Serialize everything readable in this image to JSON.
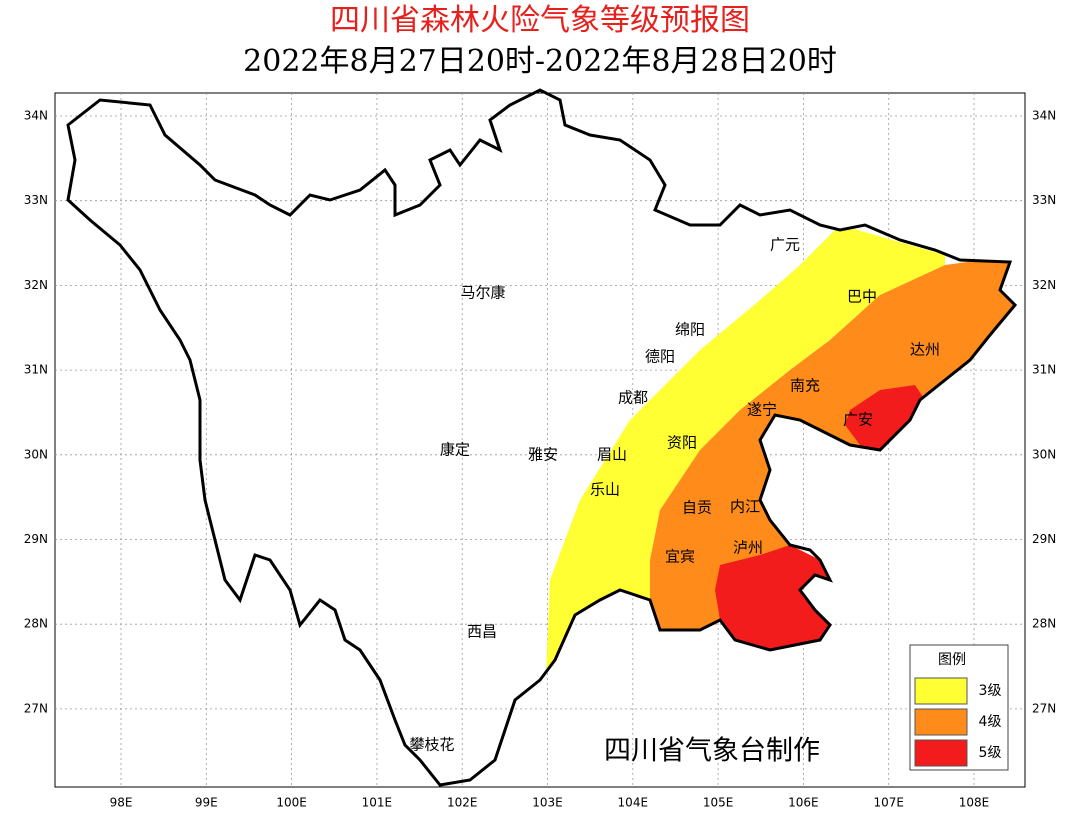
{
  "title": "四川省森林火险气象等级预报图",
  "subtitle": "2022年8月27日20时-2022年8月28日20时",
  "lon_ticks": [
    "98E",
    "99E",
    "100E",
    "101E",
    "102E",
    "103E",
    "104E",
    "105E",
    "106E",
    "107E",
    "108E"
  ],
  "lat_ticks": [
    "34N",
    "33N",
    "32N",
    "31N",
    "30N",
    "29N",
    "28N",
    "27N"
  ],
  "cities": [
    "广元",
    "巴中",
    "马尔康",
    "绵阳",
    "德阳",
    "达州",
    "南充",
    "成都",
    "遂宁",
    "广安",
    "康定",
    "雅安",
    "眉山",
    "资阳",
    "乐山",
    "自贡",
    "内江",
    "宜宾",
    "泸州",
    "西昌",
    "攀枝花"
  ],
  "legend": {
    "title": "图例",
    "items": [
      "3级",
      "4级",
      "5级"
    ]
  },
  "credit": "四川省气象台制作"
}
